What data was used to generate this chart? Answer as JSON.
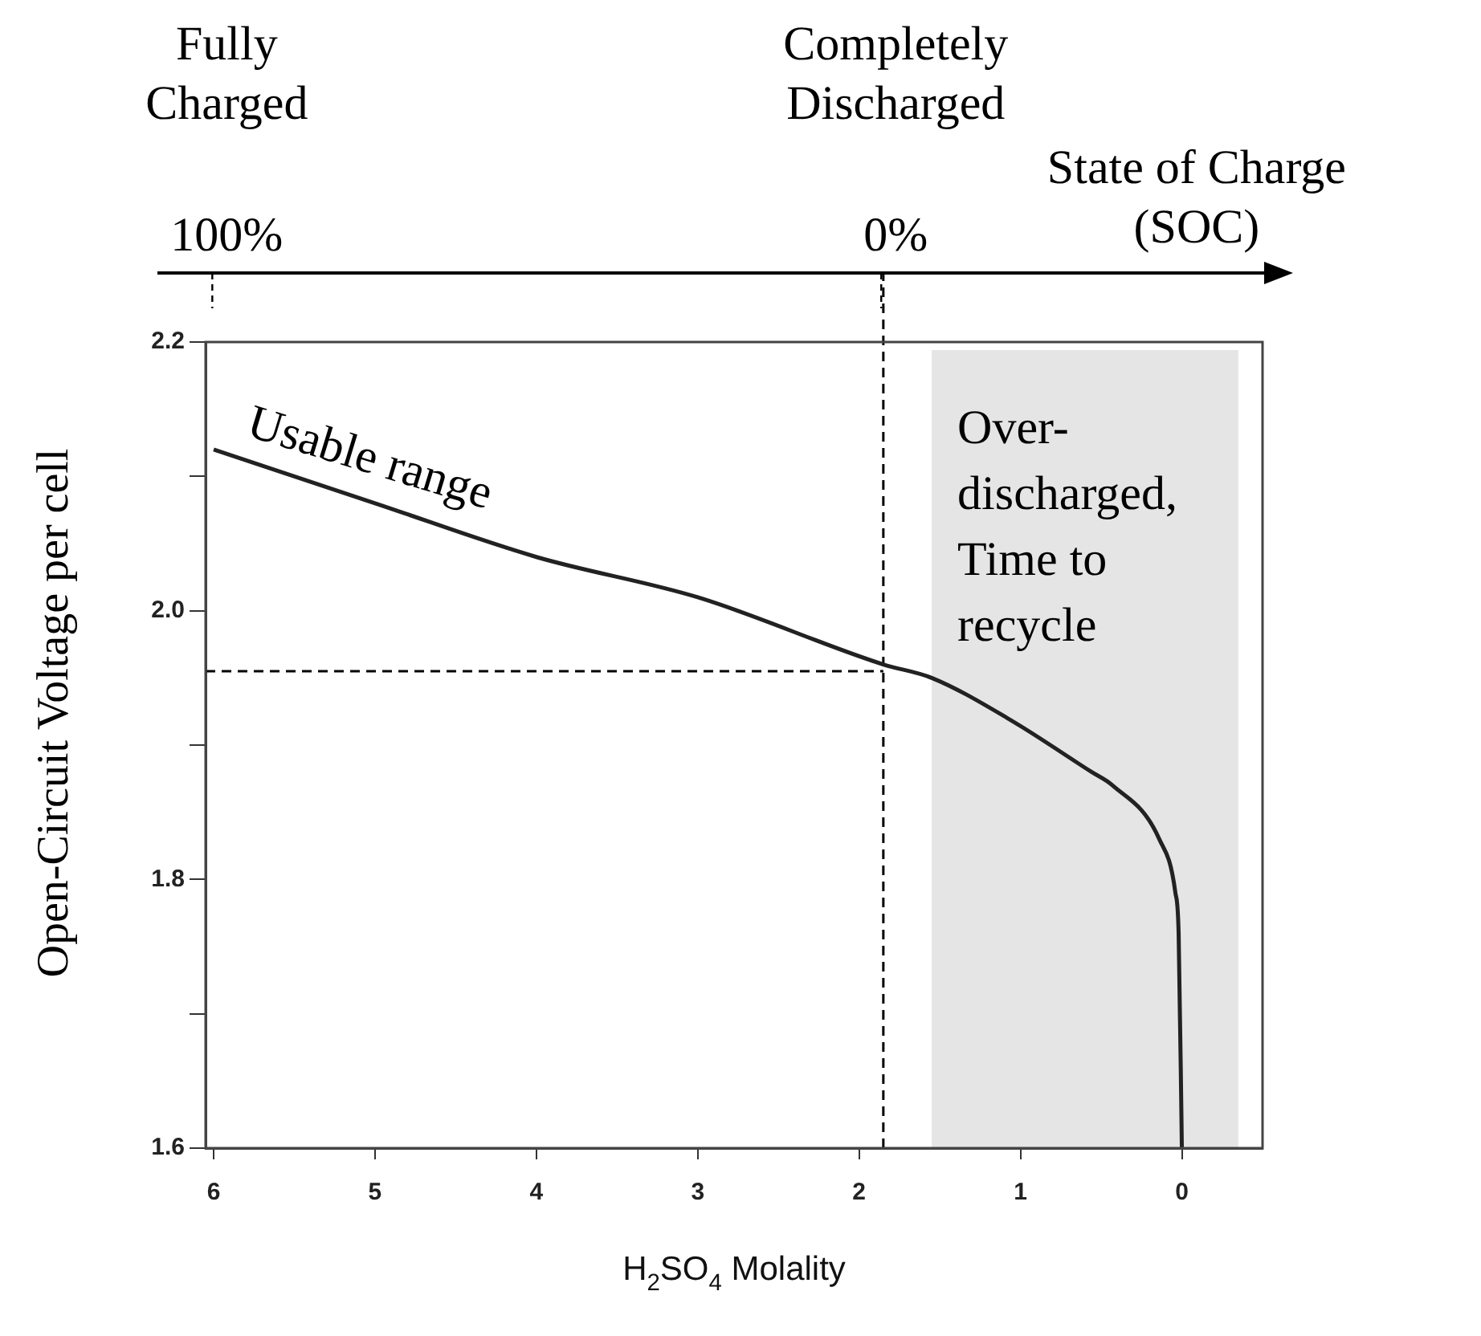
{
  "chart_data": {
    "type": "line",
    "xlabel": "H$_{2}$SO$_{4}$ Molality",
    "ylabel": "Open-Circuit Voltage per cell",
    "x2label": "State of Charge (SOC)",
    "x": [
      6,
      5,
      4,
      3,
      1.85,
      1.55,
      1.08,
      0.56,
      0.43,
      0.14,
      0.04,
      0.02,
      0
    ],
    "series": [
      {
        "color": "#222222",
        "values": [
          2.12,
          2.08,
          2.04,
          2.01,
          1.96,
          1.95,
          1.92,
          1.88,
          1.87,
          1.83,
          1.79,
          1.76,
          1.6
        ]
      }
    ],
    "xlim": [
      6.05,
      -0.5
    ],
    "xticks": [
      6,
      5,
      4,
      3,
      2,
      1,
      0
    ],
    "ylim": [
      1.6,
      2.2
    ],
    "yticks": [
      1.6,
      {
        "value": 1.7,
        "label": null
      },
      1.8,
      {
        "value": 1.9,
        "label": null
      },
      {
        "value": 2,
        "label": "2.0"
      },
      {
        "value": 2.1,
        "label": null
      },
      2.2
    ],
    "x2lim": [
      101,
      -57
    ],
    "x2ticks": [
      {
        "value": 100,
        "label": "100%"
      },
      {
        "value": 0,
        "label": "0%"
      }
    ],
    "ref_lines": [
      {
        "axis": "x",
        "value": 1.85,
        "line_style": "dashed",
        "color": "#000000"
      },
      {
        "axis": "y",
        "value": 1.955,
        "line_style": "dashed",
        "color": "#000000"
      }
    ],
    "bands": [
      {
        "axis": "x",
        "from": 1.55,
        "to": -0.35,
        "label": "Over-\ndischarged,\nTime to\nrecycle",
        "color": "#e5e5e5"
      }
    ],
    "annotations": [
      "Fully Charged",
      "Completely Discharged",
      "Usable range"
    ],
    "grid": false,
    "legend": false,
    "marker": "none"
  }
}
